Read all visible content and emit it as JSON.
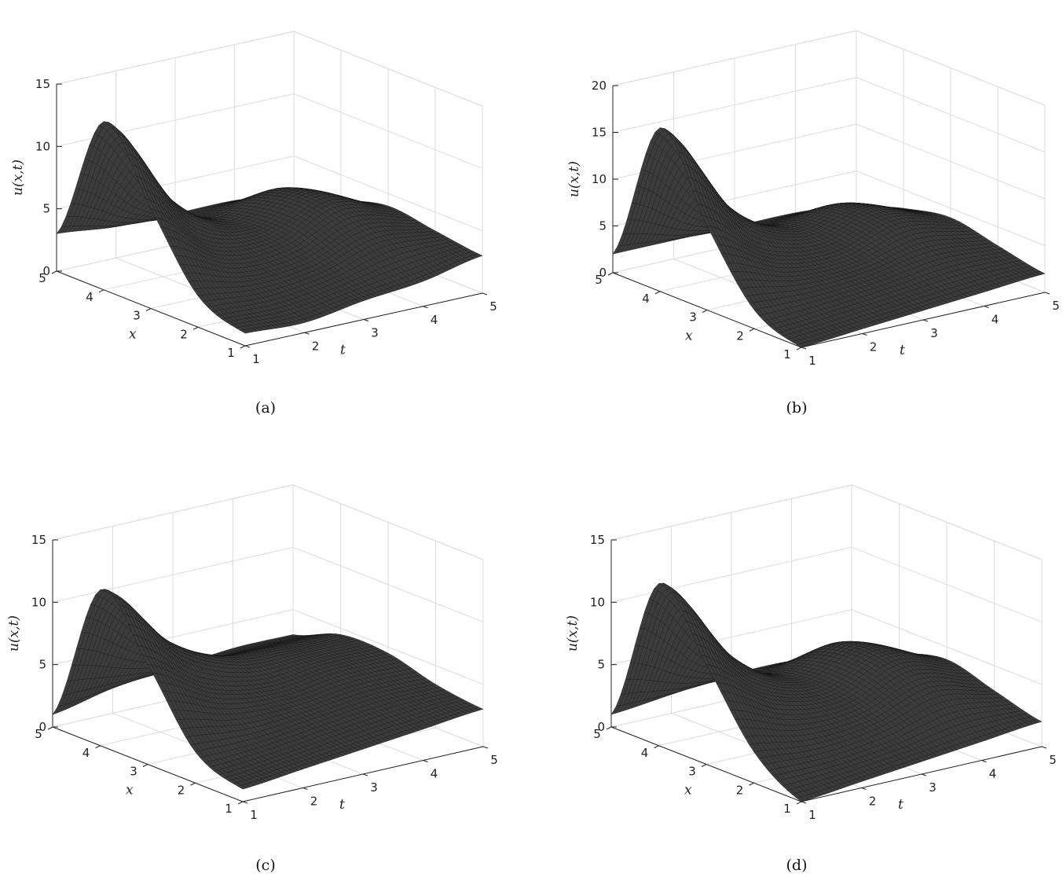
{
  "chart_data": [
    {
      "type": "surface",
      "caption": "(a)",
      "xlabel": "x",
      "tlabel": "t",
      "zlabel": "u(x,t)",
      "x_range": [
        1,
        5
      ],
      "t_range": [
        1,
        5
      ],
      "z_range": [
        0,
        15
      ],
      "x_ticks": [
        1,
        2,
        3,
        4,
        5
      ],
      "t_ticks": [
        1,
        2,
        3,
        4,
        5
      ],
      "z_ticks": [
        0,
        5,
        10,
        15
      ],
      "grid": true,
      "colormap": "black mesh on gray",
      "surface_samples": {
        "x": [
          1,
          2,
          3,
          4,
          5
        ],
        "t": [
          1,
          2,
          3,
          4,
          5
        ],
        "u": [
          [
            1.0,
            0.8,
            1.5,
            2.0,
            3.0
          ],
          [
            2.5,
            2.0,
            2.5,
            4.0,
            3.5
          ],
          [
            8.0,
            4.0,
            3.5,
            5.5,
            4.0
          ],
          [
            13.5,
            6.5,
            3.5,
            5.0,
            3.0
          ],
          [
            3.0,
            2.5,
            2.5,
            2.5,
            2.0
          ]
        ]
      }
    },
    {
      "type": "surface",
      "caption": "(b)",
      "xlabel": "x",
      "tlabel": "t",
      "zlabel": "u(x,t)",
      "x_range": [
        1,
        5
      ],
      "t_range": [
        1,
        5
      ],
      "z_range": [
        0,
        20
      ],
      "x_ticks": [
        1,
        2,
        3,
        4,
        5
      ],
      "t_ticks": [
        1,
        2,
        3,
        4,
        5
      ],
      "z_ticks": [
        0,
        5,
        10,
        15,
        20
      ],
      "grid": true,
      "colormap": "black mesh on gray",
      "surface_samples": {
        "x": [
          1,
          2,
          3,
          4,
          5
        ],
        "t": [
          1,
          2,
          3,
          4,
          5
        ],
        "u": [
          [
            0.0,
            0.5,
            1.0,
            1.5,
            2.0
          ],
          [
            2.0,
            2.0,
            2.5,
            3.5,
            3.0
          ],
          [
            9.0,
            4.5,
            3.5,
            5.5,
            4.0
          ],
          [
            17.5,
            8.0,
            4.0,
            5.0,
            3.0
          ],
          [
            2.0,
            2.0,
            2.0,
            2.0,
            1.5
          ]
        ]
      }
    },
    {
      "type": "surface",
      "caption": "(c)",
      "xlabel": "x",
      "tlabel": "t",
      "zlabel": "u(x,t)",
      "x_range": [
        1,
        5
      ],
      "t_range": [
        1,
        5
      ],
      "z_range": [
        0,
        15
      ],
      "x_ticks": [
        1,
        2,
        3,
        4,
        5
      ],
      "t_ticks": [
        1,
        2,
        3,
        4,
        5
      ],
      "z_ticks": [
        0,
        5,
        10,
        15
      ],
      "grid": true,
      "colormap": "black mesh on gray",
      "surface_samples": {
        "x": [
          1,
          2,
          3,
          4,
          5
        ],
        "t": [
          1,
          2,
          3,
          4,
          5
        ],
        "u": [
          [
            1.0,
            1.5,
            2.0,
            2.5,
            3.0
          ],
          [
            2.5,
            2.5,
            3.0,
            3.5,
            3.5
          ],
          [
            8.0,
            5.0,
            4.0,
            4.5,
            4.5
          ],
          [
            12.5,
            7.5,
            5.0,
            4.5,
            4.5
          ],
          [
            1.0,
            2.0,
            2.5,
            3.0,
            3.0
          ]
        ]
      }
    },
    {
      "type": "surface",
      "caption": "(d)",
      "xlabel": "x",
      "tlabel": "t",
      "zlabel": "u(x,t)",
      "x_range": [
        1,
        5
      ],
      "t_range": [
        1,
        5
      ],
      "z_range": [
        0,
        15
      ],
      "x_ticks": [
        1,
        2,
        3,
        4,
        5
      ],
      "t_ticks": [
        1,
        2,
        3,
        4,
        5
      ],
      "z_ticks": [
        0,
        5,
        10,
        15
      ],
      "grid": true,
      "colormap": "black mesh on gray",
      "surface_samples": {
        "x": [
          1,
          2,
          3,
          4,
          5
        ],
        "t": [
          1,
          2,
          3,
          4,
          5
        ],
        "u": [
          [
            0.0,
            0.5,
            1.0,
            1.5,
            2.0
          ],
          [
            2.5,
            2.0,
            2.5,
            4.0,
            3.0
          ],
          [
            8.0,
            4.5,
            3.5,
            5.5,
            4.0
          ],
          [
            13.0,
            6.5,
            3.5,
            5.0,
            3.0
          ],
          [
            1.0,
            1.5,
            2.0,
            2.0,
            1.5
          ]
        ]
      }
    }
  ]
}
